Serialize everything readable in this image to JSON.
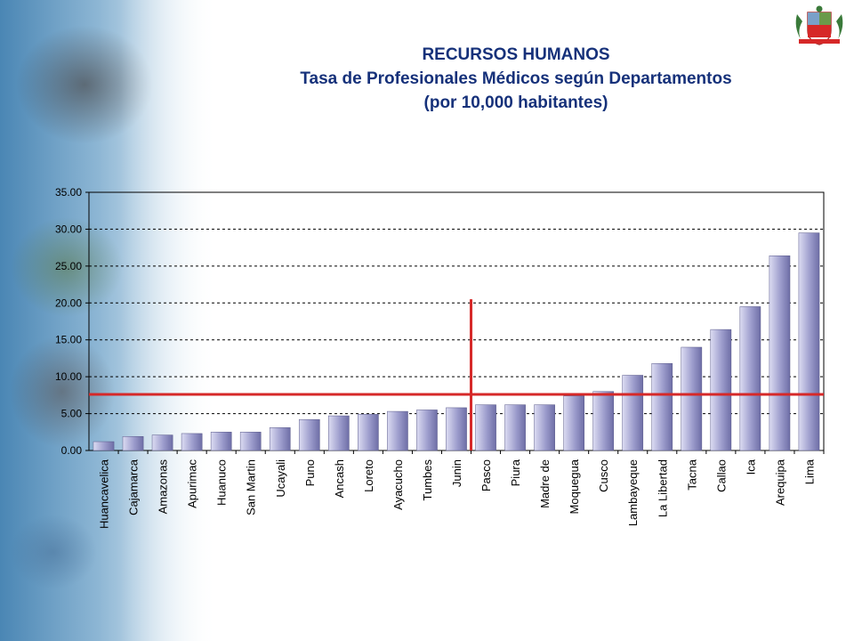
{
  "header": {
    "title": "RECURSOS HUMANOS",
    "subtitle_1": "Tasa de Profesionales Médicos según Departamentos",
    "subtitle_2": "(por 10,000 habitantes)"
  },
  "colors": {
    "title": "#16317a",
    "bar": "#9c9ccc",
    "reference_line": "#d62828"
  },
  "chart_data": {
    "type": "bar",
    "categories": [
      "Huancavelica",
      "Cajamarca",
      "Amazonas",
      "Apurimac",
      "Huanuco",
      "San Martin",
      "Ucayali",
      "Puno",
      "Ancash",
      "Loreto",
      "Ayacucho",
      "Tumbes",
      "Junin",
      "Pasco",
      "Piura",
      "Madre de",
      "Moquegua",
      "Cusco",
      "Lambayeque",
      "La Libertad",
      "Tacna",
      "Callao",
      "Ica",
      "Arequipa",
      "Lima"
    ],
    "values": [
      1.2,
      1.9,
      2.1,
      2.3,
      2.5,
      2.5,
      3.1,
      4.2,
      4.7,
      4.9,
      5.3,
      5.5,
      5.8,
      6.2,
      6.2,
      6.2,
      7.4,
      8.0,
      10.2,
      11.8,
      14.0,
      16.4,
      19.5,
      26.4,
      29.5
    ],
    "title": "",
    "xlabel": "",
    "ylabel": "",
    "ylim": [
      0,
      35
    ],
    "yticks": [
      "0.00",
      "5.00",
      "10.00",
      "15.00",
      "20.00",
      "25.00",
      "30.00",
      "35.00"
    ],
    "grid": "horizontal dashed",
    "legend": "none",
    "reference_lines": {
      "horizontal_value": 7.6,
      "vertical_between": [
        "Junin",
        "Pasco"
      ],
      "vertical_top_value": 20.5
    }
  }
}
